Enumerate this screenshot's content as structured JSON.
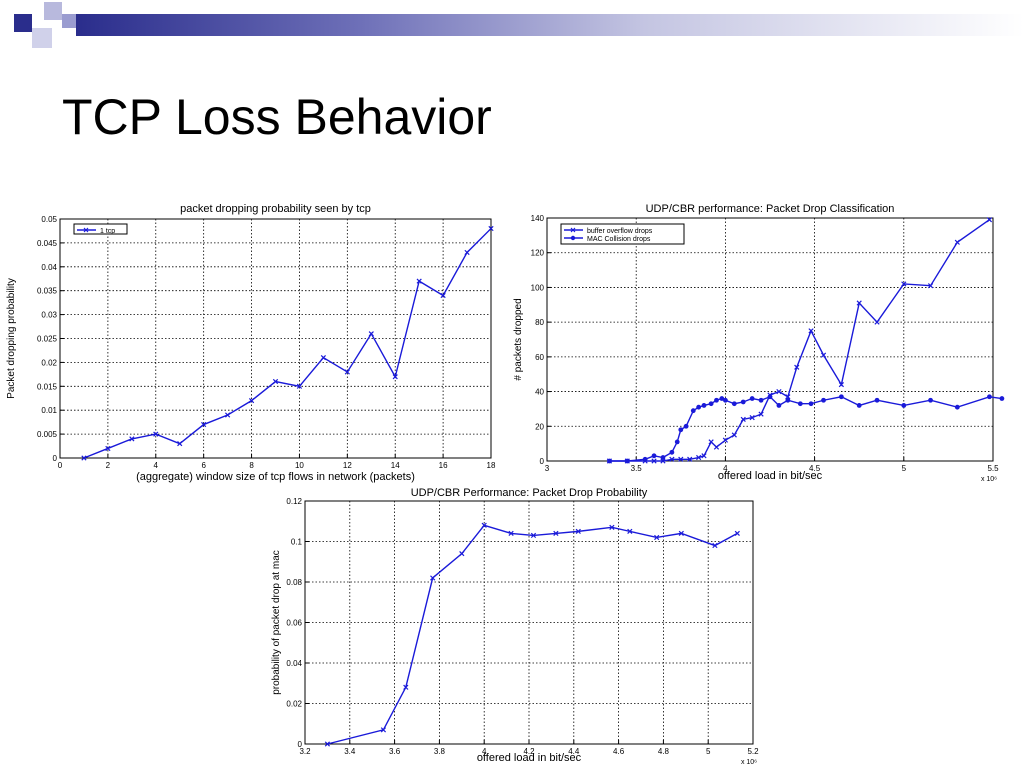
{
  "slide": {
    "title": "TCP Loss Behavior"
  },
  "colors": {
    "line": "#1a1ad9",
    "deco_dark": "#2a2d8c",
    "deco_mid": "#6e70b8",
    "deco_light": "#b8b9dd"
  },
  "chart_data": [
    {
      "type": "line",
      "title": "packet dropping probability seen by tcp",
      "xlabel": "(aggregate) window size of tcp flows in network (packets)",
      "ylabel": "Packet dropping probability",
      "xlim": [
        0,
        18
      ],
      "ylim": [
        0,
        0.05
      ],
      "xticks": [
        0,
        2,
        4,
        6,
        8,
        10,
        12,
        14,
        16,
        18
      ],
      "yticks": [
        0,
        0.005,
        0.01,
        0.015,
        0.02,
        0.025,
        0.03,
        0.035,
        0.04,
        0.045,
        0.05
      ],
      "xtick_labels": [
        "0",
        "2",
        "4",
        "6",
        "8",
        "10",
        "12",
        "14",
        "16",
        "18"
      ],
      "ytick_labels": [
        "0",
        "0.005",
        "0.01",
        "0.015",
        "0.02",
        "0.025",
        "0.03",
        "0.035",
        "0.04",
        "0.045",
        "0.05"
      ],
      "grid": true,
      "legend": {
        "position": "top-left",
        "entries": [
          "1 tcp"
        ]
      },
      "exponent_label": "",
      "series": [
        {
          "name": "1 tcp",
          "marker": "x",
          "x": [
            1,
            2,
            3,
            4,
            5,
            6,
            7,
            8,
            9,
            10,
            11,
            12,
            13,
            14,
            15,
            16,
            17,
            18
          ],
          "y": [
            0,
            0.002,
            0.004,
            0.005,
            0.003,
            0.007,
            0.009,
            0.012,
            0.016,
            0.015,
            0.021,
            0.018,
            0.026,
            0.017,
            0.037,
            0.034,
            0.043,
            0.048
          ]
        }
      ]
    },
    {
      "type": "line",
      "title": "UDP/CBR performance: Packet Drop Classification",
      "xlabel": "offered load in bit/sec",
      "ylabel": "# packets dropped",
      "xlim": [
        3.0,
        5.5
      ],
      "ylim": [
        0,
        140
      ],
      "xticks": [
        3.0,
        3.5,
        4.0,
        4.5,
        5.0,
        5.5
      ],
      "yticks": [
        0,
        20,
        40,
        60,
        80,
        100,
        120,
        140
      ],
      "xtick_labels": [
        "3",
        "3.5",
        "4",
        "4.5",
        "5",
        "5.5"
      ],
      "ytick_labels": [
        "0",
        "20",
        "40",
        "60",
        "80",
        "100",
        "120",
        "140"
      ],
      "grid": true,
      "legend": {
        "position": "top-left",
        "entries": [
          "buffer overflow drops",
          "MAC Collision drops"
        ]
      },
      "exponent_label": "x 10⁶",
      "series": [
        {
          "name": "buffer overflow drops",
          "marker": "x",
          "x": [
            3.35,
            3.45,
            3.55,
            3.6,
            3.65,
            3.7,
            3.75,
            3.8,
            3.85,
            3.88,
            3.92,
            3.95,
            4.0,
            4.05,
            4.1,
            4.15,
            4.2,
            4.25,
            4.3,
            4.35,
            4.4,
            4.48,
            4.55,
            4.65,
            4.75,
            4.85,
            5.0,
            5.15,
            5.3,
            5.48
          ],
          "y": [
            0,
            0,
            0,
            0,
            0,
            1,
            1,
            1,
            2,
            3,
            11,
            8,
            12,
            15,
            24,
            25,
            27,
            38,
            40,
            37,
            54,
            75,
            61,
            44,
            91,
            80,
            102,
            101,
            126,
            139
          ]
        },
        {
          "name": "MAC Collision drops",
          "marker": "dot",
          "x": [
            3.35,
            3.45,
            3.55,
            3.6,
            3.65,
            3.7,
            3.73,
            3.75,
            3.78,
            3.82,
            3.85,
            3.88,
            3.92,
            3.95,
            3.98,
            4.0,
            4.05,
            4.1,
            4.15,
            4.2,
            4.25,
            4.3,
            4.35,
            4.42,
            4.48,
            4.55,
            4.65,
            4.75,
            4.85,
            5.0,
            5.15,
            5.3,
            5.48,
            5.55
          ],
          "y": [
            0,
            0,
            1,
            3,
            2,
            5,
            11,
            18,
            20,
            29,
            31,
            32,
            33,
            35,
            36,
            35,
            33,
            34,
            36,
            35,
            37,
            32,
            35,
            33,
            33,
            35,
            37,
            32,
            35,
            32,
            35,
            31,
            37,
            36
          ]
        }
      ]
    },
    {
      "type": "line",
      "title": "UDP/CBR Performance: Packet Drop Probability",
      "xlabel": "offered load in bit/sec",
      "ylabel": "probability of packet drop at mac",
      "xlim": [
        3.2,
        5.2
      ],
      "ylim": [
        0,
        0.12
      ],
      "xticks": [
        3.2,
        3.4,
        3.6,
        3.8,
        4.0,
        4.2,
        4.4,
        4.6,
        4.8,
        5.0,
        5.2
      ],
      "yticks": [
        0,
        0.02,
        0.04,
        0.06,
        0.08,
        0.1,
        0.12
      ],
      "xtick_labels": [
        "3.2",
        "3.4",
        "3.6",
        "3.8",
        "4",
        "4.2",
        "4.4",
        "4.6",
        "4.8",
        "5",
        "5.2"
      ],
      "ytick_labels": [
        "0",
        "0.02",
        "0.04",
        "0.06",
        "0.08",
        "0.1",
        "0.12"
      ],
      "grid": true,
      "legend": null,
      "exponent_label": "x 10⁶",
      "series": [
        {
          "name": "",
          "marker": "x",
          "x": [
            3.3,
            3.55,
            3.65,
            3.77,
            3.9,
            4.0,
            4.12,
            4.22,
            4.32,
            4.42,
            4.57,
            4.65,
            4.77,
            4.88,
            5.03,
            5.13
          ],
          "y": [
            0,
            0.007,
            0.028,
            0.082,
            0.094,
            0.108,
            0.104,
            0.103,
            0.104,
            0.105,
            0.107,
            0.105,
            0.102,
            0.104,
            0.098,
            0.104
          ]
        }
      ]
    }
  ]
}
